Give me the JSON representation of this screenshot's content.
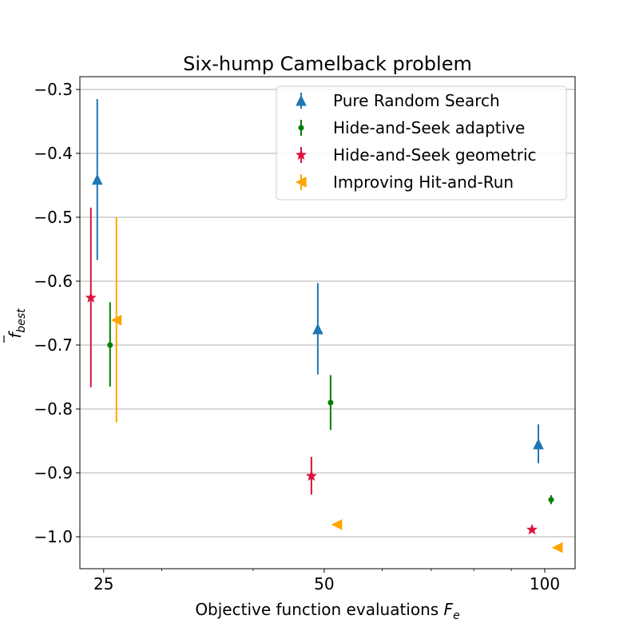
{
  "chart_data": {
    "type": "scatter",
    "title": "Six-hump Camelback problem",
    "xlabel": {
      "base": "Objective function evaluations ",
      "var": "F",
      "sub": "e"
    },
    "ylabel": {
      "var": "f",
      "sub": "best",
      "bar": true
    },
    "x_scale": "log",
    "xticks": [
      25,
      50,
      100
    ],
    "yticks": [
      -1.0,
      -0.9,
      -0.8,
      -0.7,
      -0.6,
      -0.5,
      -0.4,
      -0.3
    ],
    "ytick_labels": [
      "−1.0",
      "−0.9",
      "−0.8",
      "−0.7",
      "−0.6",
      "−0.5",
      "−0.4",
      "−0.3"
    ],
    "ylim": [
      -1.05,
      -0.28
    ],
    "grid": "y",
    "legend_position": "top-right",
    "series": [
      {
        "name": "Pure Random Search",
        "color": "#1f77b4",
        "marker": "triangle-up",
        "points": [
          {
            "x": 25,
            "y": -0.441,
            "lo": -0.567,
            "hi": -0.315
          },
          {
            "x": 50,
            "y": -0.675,
            "lo": -0.746,
            "hi": -0.603
          },
          {
            "x": 100,
            "y": -0.855,
            "lo": -0.885,
            "hi": -0.824
          }
        ]
      },
      {
        "name": "Hide-and-Seek adaptive",
        "color": "#008000",
        "marker": "dot",
        "points": [
          {
            "x": 25,
            "y": -0.7,
            "lo": -0.765,
            "hi": -0.633
          },
          {
            "x": 50,
            "y": -0.79,
            "lo": -0.833,
            "hi": -0.747
          },
          {
            "x": 100,
            "y": -0.942,
            "lo": -0.949,
            "hi": -0.935
          }
        ]
      },
      {
        "name": "Hide-and-Seek geometric",
        "color": "#dc143c",
        "marker": "star",
        "points": [
          {
            "x": 25,
            "y": -0.626,
            "lo": -0.766,
            "hi": -0.485
          },
          {
            "x": 50,
            "y": -0.905,
            "lo": -0.934,
            "hi": -0.875
          },
          {
            "x": 100,
            "y": -0.989,
            "lo": -0.991,
            "hi": -0.987
          }
        ]
      },
      {
        "name": "Improving Hit-and-Run",
        "color": "#ffa500",
        "marker": "triangle-left",
        "points": [
          {
            "x": 25,
            "y": -0.661,
            "lo": -0.821,
            "hi": -0.5
          },
          {
            "x": 50,
            "y": -0.981,
            "lo": -0.984,
            "hi": -0.978
          },
          {
            "x": 100,
            "y": -1.017,
            "lo": -1.018,
            "hi": -1.016
          }
        ]
      }
    ]
  }
}
